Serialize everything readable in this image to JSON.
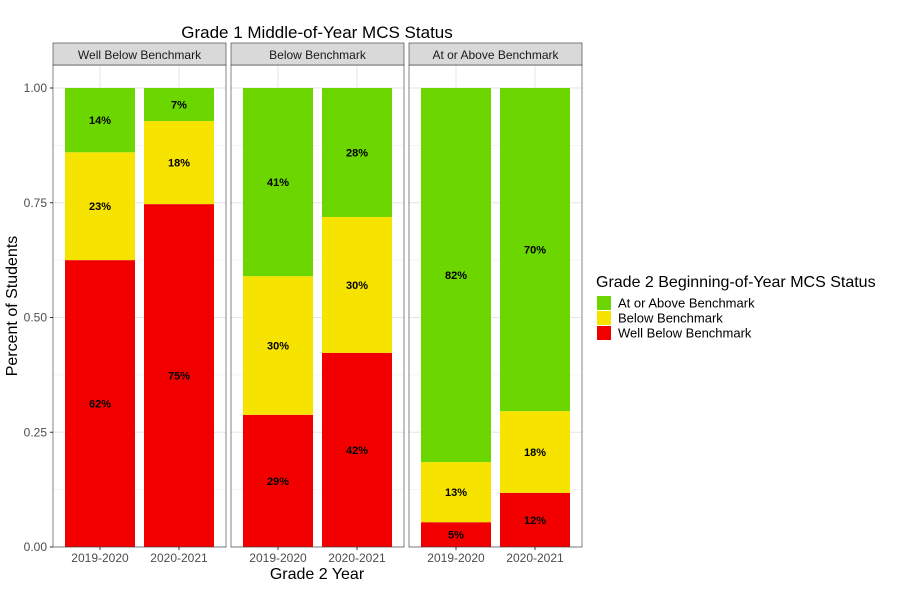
{
  "chart_data": {
    "type": "bar",
    "stacked": true,
    "title": "Grade 1 Middle-of-Year MCS Status",
    "xlabel": "Grade 2 Year",
    "ylabel": "Percent of Students",
    "ylim": [
      0,
      1
    ],
    "yticks": [
      "0.00",
      "0.25",
      "0.50",
      "0.75",
      "1.00"
    ],
    "grid": true,
    "categories": [
      "2019-2020",
      "2020-2021"
    ],
    "legend": {
      "title": "Grade 2 Beginning-of-Year MCS Status",
      "position": "right",
      "entries": [
        "At or Above Benchmark",
        "Below Benchmark",
        "Well Below Benchmark"
      ]
    },
    "colors": {
      "At or Above Benchmark": "#6bd600",
      "Below Benchmark": "#f7e300",
      "Well Below Benchmark": "#f20000"
    },
    "facets": [
      {
        "name": "Well Below Benchmark",
        "series": [
          {
            "name": "Well Below Benchmark",
            "values": [
              0.625,
              0.747
            ],
            "labels": [
              "62%",
              "75%"
            ]
          },
          {
            "name": "Below Benchmark",
            "values": [
              0.235,
              0.181
            ],
            "labels": [
              "23%",
              "18%"
            ]
          },
          {
            "name": "At or Above Benchmark",
            "values": [
              0.14,
              0.072
            ],
            "labels": [
              "14%",
              "7%"
            ]
          }
        ]
      },
      {
        "name": "Below Benchmark",
        "series": [
          {
            "name": "Well Below Benchmark",
            "values": [
              0.288,
              0.423
            ],
            "labels": [
              "29%",
              "42%"
            ]
          },
          {
            "name": "Below Benchmark",
            "values": [
              0.302,
              0.296
            ],
            "labels": [
              "30%",
              "30%"
            ]
          },
          {
            "name": "At or Above Benchmark",
            "values": [
              0.41,
              0.281
            ],
            "labels": [
              "41%",
              "28%"
            ]
          }
        ]
      },
      {
        "name": "At or Above Benchmark",
        "series": [
          {
            "name": "Well Below Benchmark",
            "values": [
              0.054,
              0.118
            ],
            "labels": [
              "5%",
              "12%"
            ]
          },
          {
            "name": "Below Benchmark",
            "values": [
              0.131,
              0.178
            ],
            "labels": [
              "13%",
              "18%"
            ]
          },
          {
            "name": "At or Above Benchmark",
            "values": [
              0.815,
              0.704
            ],
            "labels": [
              "82%",
              "70%"
            ]
          }
        ]
      }
    ]
  }
}
